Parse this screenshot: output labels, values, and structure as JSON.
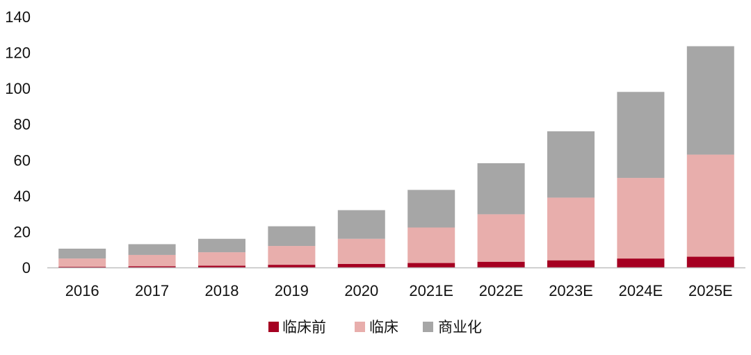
{
  "chart_data": {
    "type": "bar",
    "stacked": true,
    "categories": [
      "2016",
      "2017",
      "2018",
      "2019",
      "2020",
      "2021E",
      "2022E",
      "2023E",
      "2024E",
      "2025E"
    ],
    "series": [
      {
        "name": "临床前",
        "color": "#a50021",
        "values": [
          0.4,
          0.7,
          1.0,
          1.5,
          2.0,
          2.5,
          3.2,
          4.0,
          5.0,
          6.0
        ]
      },
      {
        "name": "临床",
        "color": "#e8aeac",
        "values": [
          4.6,
          6.3,
          7.5,
          10.5,
          14.0,
          19.8,
          26.5,
          35.0,
          45.0,
          57.0
        ]
      },
      {
        "name": "商业化",
        "color": "#a6a6a6",
        "values": [
          5.5,
          6.0,
          7.5,
          11.0,
          16.0,
          21.0,
          28.5,
          37.0,
          48.0,
          60.5
        ]
      }
    ],
    "ylim": [
      0,
      140
    ],
    "yticks": [
      0,
      20,
      40,
      60,
      80,
      100,
      120,
      140
    ],
    "grid": false,
    "legend_position": "bottom-center"
  }
}
